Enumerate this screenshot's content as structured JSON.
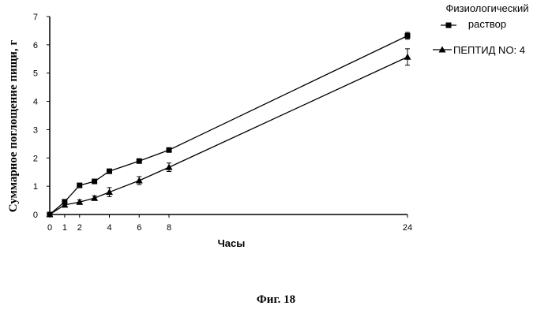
{
  "chart_data": {
    "type": "line",
    "xlabel": "Часы",
    "ylabel": "Суммарное поглощение пищи, г",
    "x_ticks": [
      0,
      1,
      2,
      4,
      6,
      8,
      24
    ],
    "y_ticks": [
      0,
      1,
      2,
      3,
      4,
      5,
      6,
      7
    ],
    "xlim": [
      0,
      24
    ],
    "ylim": [
      0,
      7
    ],
    "grid": false,
    "legend_position": "top-right",
    "series": [
      {
        "name": "Физиологический раствор",
        "marker": "square",
        "x": [
          0,
          1,
          2,
          3,
          4,
          6,
          8,
          24
        ],
        "y": [
          0,
          0.45,
          1.03,
          1.17,
          1.53,
          1.89,
          2.28,
          6.32
        ],
        "err": [
          0,
          0.05,
          0.05,
          0.06,
          0.06,
          0.07,
          0.07,
          0.12
        ]
      },
      {
        "name": "ПЕПТИД NO: 4",
        "marker": "triangle",
        "x": [
          0,
          1,
          2,
          3,
          4,
          6,
          8,
          24
        ],
        "y": [
          0,
          0.34,
          0.44,
          0.58,
          0.79,
          1.2,
          1.67,
          5.57
        ],
        "err": [
          0,
          0.08,
          0.08,
          0.08,
          0.16,
          0.14,
          0.15,
          0.29
        ]
      }
    ]
  },
  "caption": "Фиг. 18"
}
